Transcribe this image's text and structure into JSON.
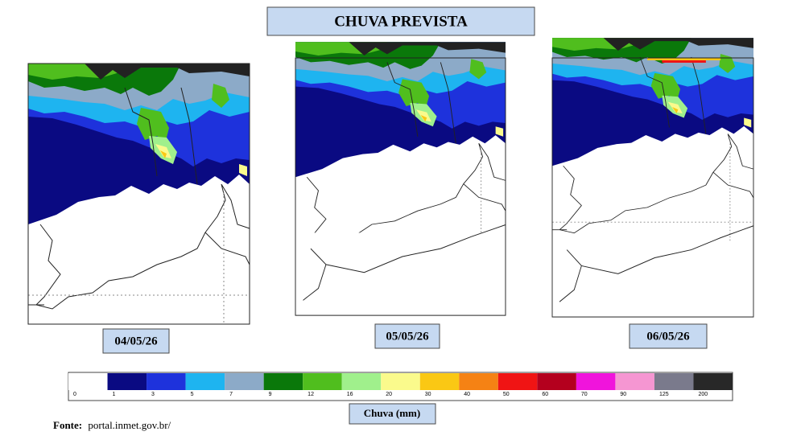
{
  "header": {
    "title": "CHUVA PREVISTA"
  },
  "maps": [
    {
      "date": "04/05/26"
    },
    {
      "date": "05/05/26"
    },
    {
      "date": "06/05/26"
    }
  ],
  "legend": {
    "title": "Chuva (mm)",
    "ticks": [
      0,
      1,
      3,
      5,
      7,
      9,
      12,
      16,
      20,
      30,
      40,
      50,
      60,
      70,
      90,
      125,
      200
    ],
    "colors": [
      "#ffffff",
      "#0a0a82",
      "#1e32dc",
      "#1eb4f0",
      "#8caac8",
      "#0a780a",
      "#50be1e",
      "#a0f08c",
      "#fafa8c",
      "#fac814",
      "#f58214",
      "#f01414",
      "#b4001e",
      "#f014dc",
      "#f596d2",
      "#7a7a8c",
      "#282828"
    ]
  },
  "footer": {
    "label": "Fonte:",
    "source": "portal.inmet.gov.br/"
  }
}
